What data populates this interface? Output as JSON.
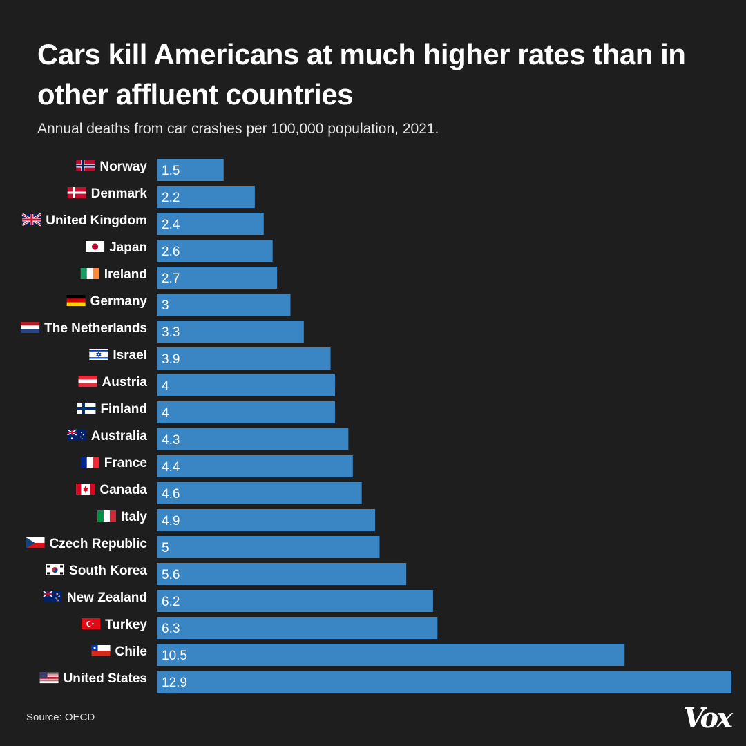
{
  "header": {
    "title": "Cars kill Americans at much higher rates than in other affluent countries",
    "subtitle": "Annual deaths from car crashes per 100,000 population, 2021."
  },
  "footer": {
    "source": "Source: OECD",
    "logo": "Vox"
  },
  "colors": {
    "background": "#1e1e1e",
    "bar": "#3a85c4",
    "text": "#ffffff"
  },
  "chart_data": {
    "type": "bar",
    "orientation": "horizontal",
    "title": "Cars kill Americans at much higher rates than in other affluent countries",
    "subtitle": "Annual deaths from car crashes per 100,000 population, 2021.",
    "xlabel": "",
    "ylabel": "",
    "xlim": [
      0,
      12.9
    ],
    "grid": false,
    "categories": [
      "Norway",
      "Denmark",
      "United Kingdom",
      "Japan",
      "Ireland",
      "Germany",
      "The Netherlands",
      "Israel",
      "Austria",
      "Finland",
      "Australia",
      "France",
      "Canada",
      "Italy",
      "Czech Republic",
      "South Korea",
      "New Zealand",
      "Turkey",
      "Chile",
      "United States"
    ],
    "values": [
      1.5,
      2.2,
      2.4,
      2.6,
      2.7,
      3,
      3.3,
      3.9,
      4,
      4,
      4.3,
      4.4,
      4.6,
      4.9,
      5,
      5.6,
      6.2,
      6.3,
      10.5,
      12.9
    ],
    "value_labels": [
      "1.5",
      "2.2",
      "2.4",
      "2.6",
      "2.7",
      "3",
      "3.3",
      "3.9",
      "4",
      "4",
      "4.3",
      "4.4",
      "4.6",
      "4.9",
      "5",
      "5.6",
      "6.2",
      "6.3",
      "10.5",
      "12.9"
    ],
    "flag_icons": [
      "norway-flag-icon",
      "denmark-flag-icon",
      "united-kingdom-flag-icon",
      "japan-flag-icon",
      "ireland-flag-icon",
      "germany-flag-icon",
      "netherlands-flag-icon",
      "israel-flag-icon",
      "austria-flag-icon",
      "finland-flag-icon",
      "australia-flag-icon",
      "france-flag-icon",
      "canada-flag-icon",
      "italy-flag-icon",
      "czech-republic-flag-icon",
      "south-korea-flag-icon",
      "new-zealand-flag-icon",
      "turkey-flag-icon",
      "chile-flag-icon",
      "united-states-flag-icon"
    ]
  }
}
